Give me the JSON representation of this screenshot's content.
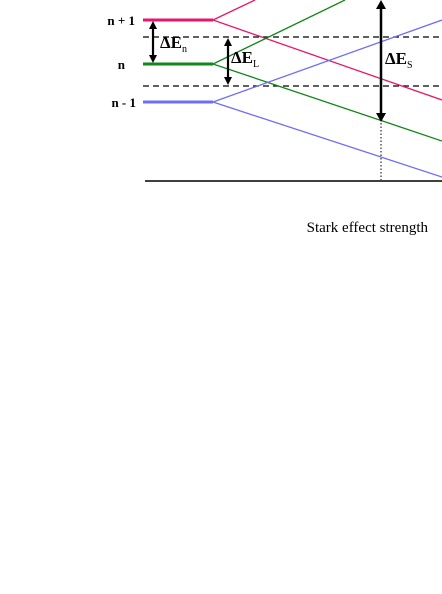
{
  "levels": [
    {
      "label": "n + 1",
      "color": "#e8176a"
    },
    {
      "label": "n",
      "color": "#12861a"
    },
    {
      "label": "n - 1",
      "color": "#6f6ef5"
    }
  ],
  "annotations": {
    "delta_symbol": "ΔE",
    "delta_n_sub": "n",
    "delta_l_sub": "L",
    "delta_s_sub": "S"
  },
  "axis": {
    "xlabel": "Stark effect strength"
  }
}
